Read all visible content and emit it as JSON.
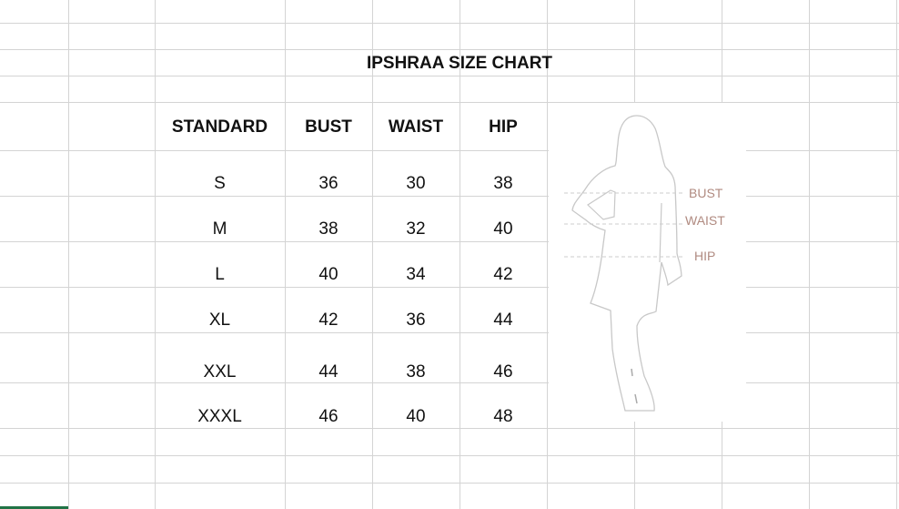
{
  "title": "IPSHRAA SIZE CHART",
  "headers": [
    "STANDARD",
    "BUST",
    "WAIST",
    "HIP"
  ],
  "rows": [
    [
      "S",
      "36",
      "30",
      "38"
    ],
    [
      "M",
      "38",
      "32",
      "40"
    ],
    [
      "L",
      "40",
      "34",
      "42"
    ],
    [
      "XL",
      "42",
      "36",
      "44"
    ],
    [
      "XXL",
      "44",
      "38",
      "46"
    ],
    [
      "XXXL",
      "46",
      "40",
      "48"
    ]
  ],
  "figure": {
    "labels": [
      "BUST",
      "WAIST",
      "HIP"
    ],
    "label_color": "#b08a80",
    "outline_color": "#c8c8c8"
  },
  "accent": "#217346"
}
